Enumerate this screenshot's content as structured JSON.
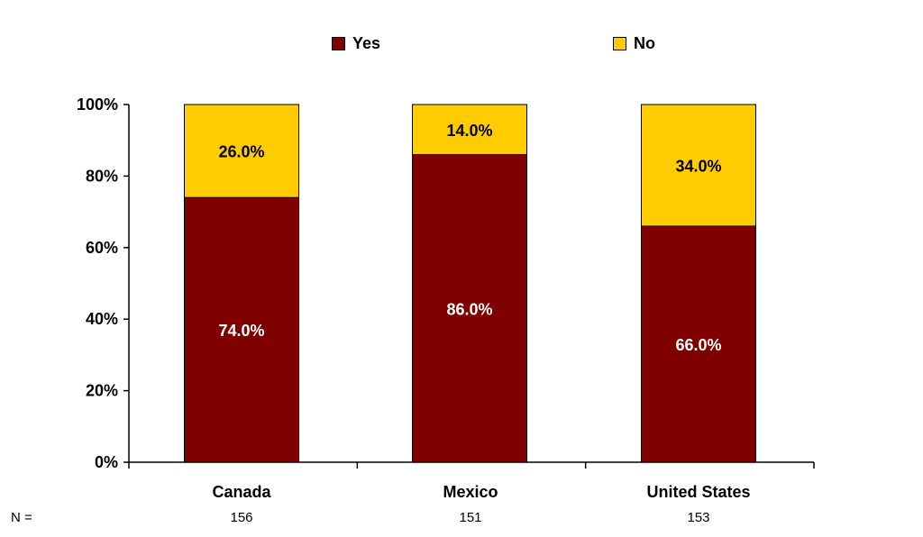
{
  "chart_data": {
    "type": "bar",
    "stacked": true,
    "categories": [
      "Canada",
      "Mexico",
      "United States"
    ],
    "series": [
      {
        "name": "Yes",
        "values": [
          74.0,
          86.0,
          66.0
        ],
        "labels": [
          "74.0%",
          "86.0%",
          "66.0%"
        ],
        "color": "#800000",
        "label_color": "#ffffff"
      },
      {
        "name": "No",
        "values": [
          26.0,
          14.0,
          34.0
        ],
        "labels": [
          "26.0%",
          "14.0%",
          "34.0%"
        ],
        "color": "#FFCC00",
        "label_color": "#000000"
      }
    ],
    "ylim": [
      0,
      100
    ],
    "yticks": [
      "0%",
      "20%",
      "40%",
      "60%",
      "80%",
      "100%"
    ],
    "legend_position": "top",
    "grid": false
  },
  "n_row": {
    "label": "N =",
    "values": [
      "156",
      "151",
      "153"
    ]
  }
}
